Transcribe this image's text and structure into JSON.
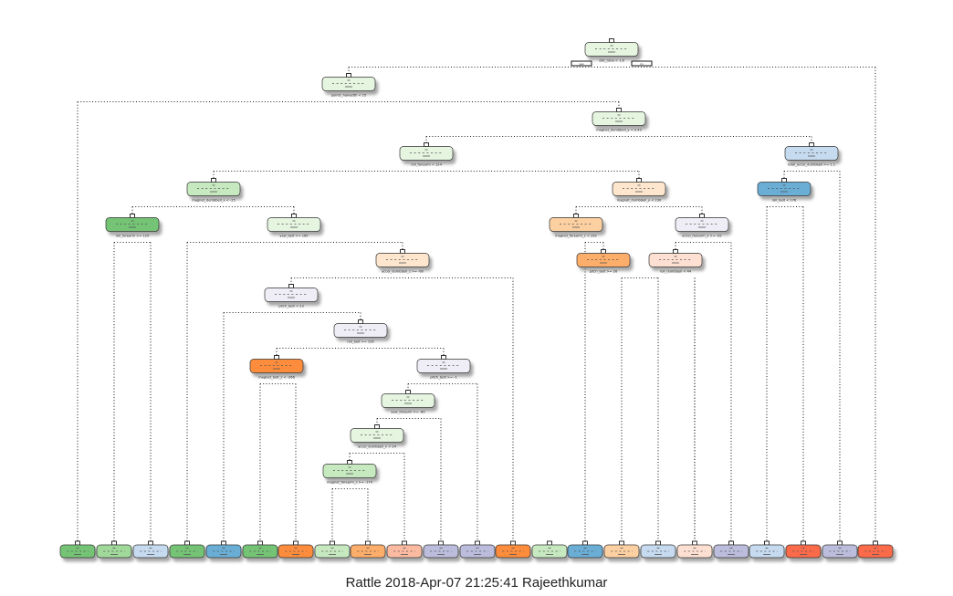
{
  "caption": "Rattle 2018-Apr-07 21:25:41 Rajeethkumar",
  "palette": {
    "pale_green": "#e5f5e0",
    "green": "#74c476",
    "light_green": "#c7e9c0",
    "mid_green": "#a1d99b",
    "pale_blue": "#c6dbef",
    "blue": "#6baed6",
    "pale_orange": "#fee6ce",
    "orange": "#fd8d3c",
    "light_orange": "#fdae6b",
    "peach": "#fdd0a2",
    "pale_purple": "#efedf5",
    "purple": "#bcbddc",
    "pale_red": "#fee0d2",
    "red": "#fb6a4a",
    "salmon": "#fcbba1"
  },
  "root_branch_labels": [
    "yes",
    "no"
  ],
  "internal_nodes": [
    {
      "id": "n1",
      "color": "pale_green",
      "split": "dist_total < 1.6"
    },
    {
      "id": "n2",
      "color": "pale_green",
      "split": "points_halvedth < 25"
    },
    {
      "id": "n3",
      "color": "pale_green",
      "split": "magnet_dumbbell_y < 0.40"
    },
    {
      "id": "n4",
      "color": "pale_green",
      "split": "roll_forearm < 124"
    },
    {
      "id": "n5",
      "color": "pale_blue",
      "split": "total_accel_dumbbell >= 1.1"
    },
    {
      "id": "n6",
      "color": "light_green",
      "split": "magnet_dumbbell_x < -25"
    },
    {
      "id": "n7",
      "color": "pale_orange",
      "split": "magnet_dumbbell_y < 230"
    },
    {
      "id": "n8",
      "color": "blue",
      "split": "roll_belt < 176"
    },
    {
      "id": "n9",
      "color": "green",
      "split": "roll_forearm >= 129"
    },
    {
      "id": "n10",
      "color": "pale_green",
      "split": "yaw_belt >= 169"
    },
    {
      "id": "n11",
      "color": "peach",
      "split": "magnet_forearm_z < 292"
    },
    {
      "id": "n12",
      "color": "pale_purple",
      "split": "accel_forearm_x >= -92"
    },
    {
      "id": "n13",
      "color": "pale_orange",
      "split": "accel_dumbbell_z >= -60"
    },
    {
      "id": "n14",
      "color": "light_orange",
      "split": "pitch_belt >= 26"
    },
    {
      "id": "n15",
      "color": "pale_red",
      "split": "roll_dumbbell < 44"
    },
    {
      "id": "n16",
      "color": "pale_purple",
      "split": "pitch_belt < 23"
    },
    {
      "id": "n17",
      "color": "pale_purple",
      "split": "roll_belt >= 126"
    },
    {
      "id": "n18",
      "color": "orange",
      "split": "magnet_belt_z < -266"
    },
    {
      "id": "n19",
      "color": "pale_purple",
      "split": "pitch_belt >= -1"
    },
    {
      "id": "n20",
      "color": "pale_green",
      "split": "yaw_forearm >= -80"
    },
    {
      "id": "n21",
      "color": "pale_green",
      "split": "accel_dumbbell_x < 24"
    },
    {
      "id": "n22",
      "color": "light_green",
      "split": "magnet_forearm_z >= -179"
    }
  ],
  "leaves": [
    {
      "id": "L1",
      "color": "green"
    },
    {
      "id": "L2",
      "color": "mid_green"
    },
    {
      "id": "L3",
      "color": "pale_blue"
    },
    {
      "id": "L4",
      "color": "green"
    },
    {
      "id": "L5",
      "color": "blue"
    },
    {
      "id": "L6",
      "color": "green"
    },
    {
      "id": "L7",
      "color": "orange"
    },
    {
      "id": "L8",
      "color": "light_green"
    },
    {
      "id": "L9",
      "color": "light_orange"
    },
    {
      "id": "L10",
      "color": "salmon"
    },
    {
      "id": "L11",
      "color": "purple"
    },
    {
      "id": "L12",
      "color": "purple"
    },
    {
      "id": "L13",
      "color": "orange"
    },
    {
      "id": "L14",
      "color": "light_green"
    },
    {
      "id": "L15",
      "color": "blue"
    },
    {
      "id": "L16",
      "color": "peach"
    },
    {
      "id": "L17",
      "color": "pale_blue"
    },
    {
      "id": "L18",
      "color": "pale_red"
    },
    {
      "id": "L19",
      "color": "purple"
    },
    {
      "id": "L20",
      "color": "pale_blue"
    },
    {
      "id": "L21",
      "color": "red"
    },
    {
      "id": "L22",
      "color": "purple"
    },
    {
      "id": "L23",
      "color": "red"
    }
  ]
}
